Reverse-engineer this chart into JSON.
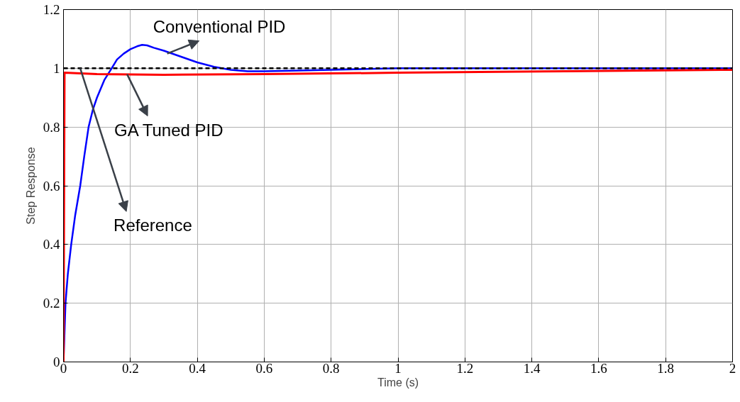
{
  "chart_data": {
    "type": "line",
    "xlabel": "Time (s)",
    "ylabel": "Step Response",
    "xlim": [
      0,
      2
    ],
    "ylim": [
      0,
      1.2
    ],
    "xticks": [
      0,
      0.2,
      0.4,
      0.6,
      0.8,
      1,
      1.2,
      1.4,
      1.6,
      1.8,
      2
    ],
    "yticks": [
      0,
      0.2,
      0.4,
      0.6,
      0.8,
      1,
      1.2
    ],
    "grid": true,
    "series": [
      {
        "color": "#0000ff",
        "line_style": "solid",
        "x": [
          0,
          0.003,
          0.006,
          0.013,
          0.023,
          0.035,
          0.05,
          0.062,
          0.075,
          0.088,
          0.1,
          0.122,
          0.144,
          0.16,
          0.18,
          0.2,
          0.22,
          0.235,
          0.25,
          0.27,
          0.3,
          0.35,
          0.4,
          0.45,
          0.5,
          0.55,
          0.6,
          0.8,
          1.0,
          1.5,
          2
        ],
        "values": [
          0,
          0.1,
          0.2,
          0.3,
          0.4,
          0.5,
          0.6,
          0.7,
          0.8,
          0.86,
          0.9,
          0.96,
          1.0,
          1.03,
          1.05,
          1.065,
          1.075,
          1.08,
          1.078,
          1.07,
          1.06,
          1.04,
          1.02,
          1.005,
          0.995,
          0.99,
          0.99,
          0.995,
          1.0,
          1.0,
          1.0
        ]
      },
      {
        "color": "#ff0000",
        "line_style": "solid",
        "x": [
          0,
          0.003,
          0.1,
          0.3,
          0.6,
          1.0,
          1.5,
          2
        ],
        "values": [
          0,
          0.985,
          0.98,
          0.978,
          0.98,
          0.985,
          0.99,
          0.995
        ]
      },
      {
        "color": "#000000",
        "line_style": "dashed",
        "x": [
          0,
          2
        ],
        "values": [
          1,
          1
        ]
      }
    ],
    "annotations": [
      {
        "text": "Conventional PID",
        "x": 0.31,
        "y": 1.05
      },
      {
        "text": "GA Tuned PID",
        "x": 0.19,
        "y": 0.98
      },
      {
        "text": "Reference",
        "x": 0.05,
        "y": 1.0
      }
    ]
  }
}
